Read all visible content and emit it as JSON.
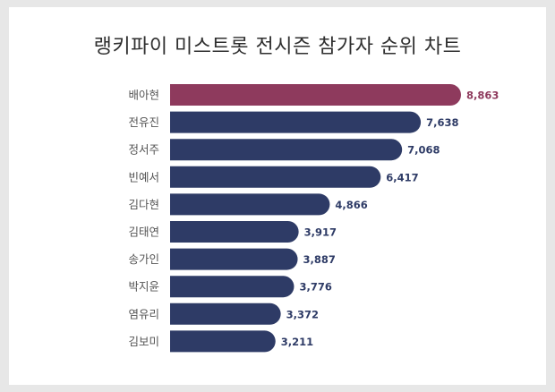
{
  "chart_data": {
    "type": "bar",
    "orientation": "horizontal",
    "title": "랭키파이 미스트롯 전시즌 참가자 순위 차트",
    "categories": [
      "배아현",
      "전유진",
      "정서주",
      "빈예서",
      "김다현",
      "김태연",
      "송가인",
      "박지윤",
      "염유리",
      "김보미"
    ],
    "values": [
      8863,
      7638,
      7068,
      6417,
      4866,
      3917,
      3887,
      3776,
      3372,
      3211
    ],
    "value_labels": [
      "8,863",
      "7,638",
      "7,068",
      "6,417",
      "4,866",
      "3,917",
      "3,887",
      "3,776",
      "3,372",
      "3,211"
    ],
    "grid": false,
    "legend": "none",
    "colors": {
      "highlight": "#8e3a5d",
      "bar": "#2e3b66",
      "highlight_label": "#8e3a5d",
      "label": "#2e3b66",
      "category_label": "#555555"
    }
  }
}
